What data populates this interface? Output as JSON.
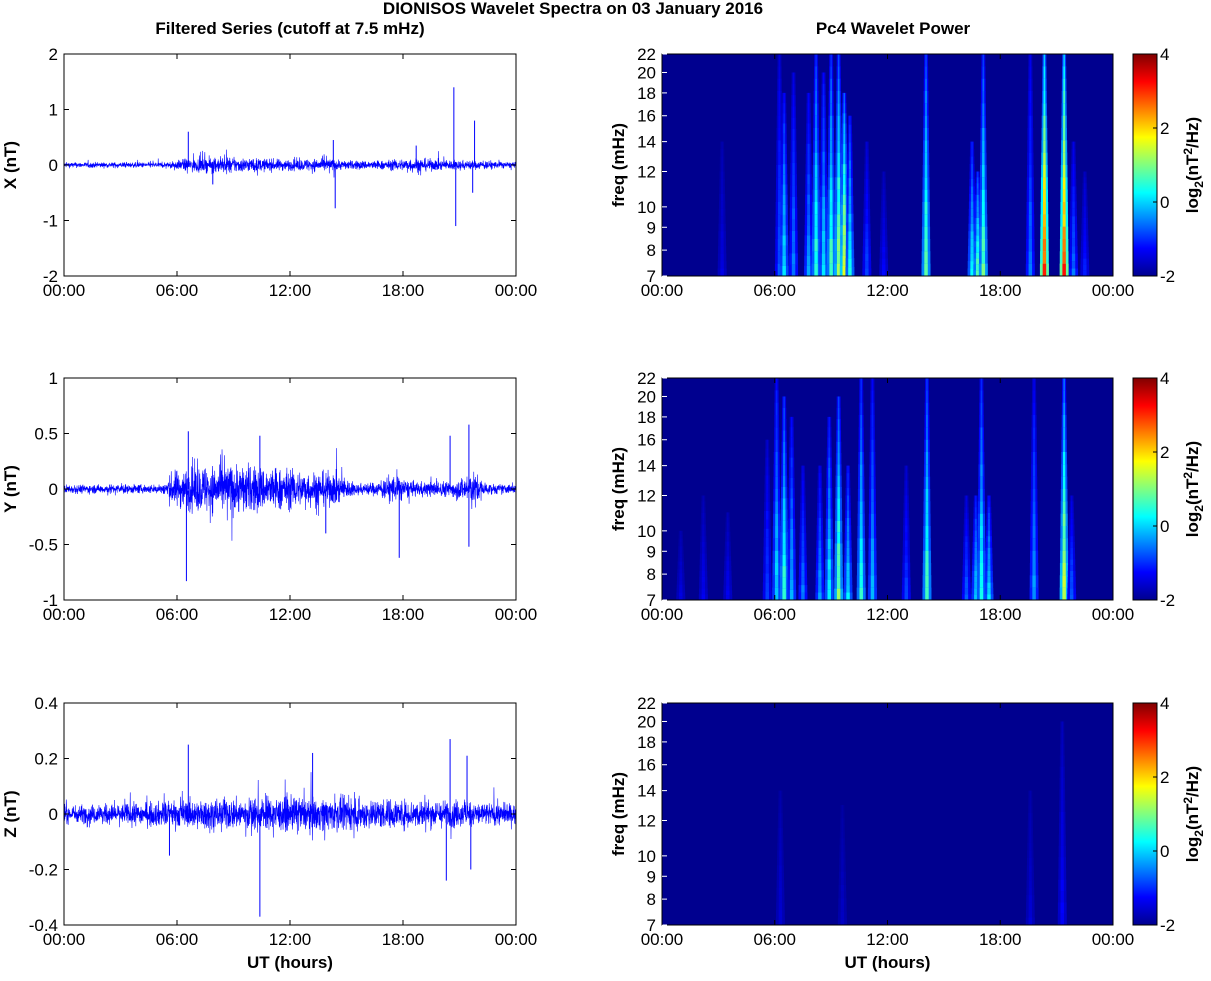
{
  "figure": {
    "title": "DIONISOS Wavelet Spectra on 03 January 2016",
    "left_column_title": "Filtered Series (cutoff at 7.5 mHz)",
    "right_column_title": "Pc4 Wavelet Power"
  },
  "colors": {
    "trace": "#0000ff",
    "spectrogram_background": "#00008f",
    "axes": "#000000",
    "colormap": [
      "#00008f",
      "#0000ff",
      "#0080ff",
      "#00ffff",
      "#80ff80",
      "#ffff00",
      "#ff8000",
      "#ff0000",
      "#800000"
    ]
  },
  "chart_data": [
    {
      "type": "line",
      "series": [
        {
          "name": "X",
          "description": "filtered magnetometer X component, dense noisy trace"
        }
      ],
      "x_ticklabels": [
        "00:00",
        "06:00",
        "12:00",
        "18:00",
        "00:00"
      ],
      "xlim_hours": [
        0,
        24
      ],
      "ylabel": "X (nT)",
      "ylim": [
        -2,
        2
      ],
      "y_ticks": [
        -2,
        -1,
        0,
        1,
        2
      ],
      "y_ticklabels": [
        "-2",
        "-1",
        "0",
        "1",
        "2"
      ],
      "envelope": [
        {
          "t": 0,
          "amp": 0.06
        },
        {
          "t": 5.5,
          "amp": 0.06
        },
        {
          "t": 6.5,
          "amp": 0.14
        },
        {
          "t": 8.5,
          "amp": 0.18
        },
        {
          "t": 12,
          "amp": 0.12
        },
        {
          "t": 14,
          "amp": 0.15
        },
        {
          "t": 15,
          "amp": 0.1
        },
        {
          "t": 17,
          "amp": 0.1
        },
        {
          "t": 18.5,
          "amp": 0.16
        },
        {
          "t": 20,
          "amp": 0.12
        },
        {
          "t": 22,
          "amp": 0.1
        },
        {
          "t": 24,
          "amp": 0.06
        }
      ],
      "spikes": [
        {
          "t": 6.6,
          "v": 0.6
        },
        {
          "t": 7.9,
          "v": -0.35
        },
        {
          "t": 14.4,
          "v": -0.78
        },
        {
          "t": 14.3,
          "v": 0.45
        },
        {
          "t": 18.7,
          "v": 0.35
        },
        {
          "t": 20.7,
          "v": 1.4
        },
        {
          "t": 20.8,
          "v": -1.1
        },
        {
          "t": 21.8,
          "v": 0.8
        },
        {
          "t": 21.7,
          "v": -0.5
        }
      ]
    },
    {
      "type": "heatmap",
      "x_ticklabels": [
        "00:00",
        "06:00",
        "12:00",
        "18:00",
        "00:00"
      ],
      "xlim_hours": [
        0,
        24
      ],
      "ylabel": "freq (mHz)",
      "y_ticks": [
        7,
        8,
        9,
        10,
        12,
        14,
        16,
        18,
        20,
        22
      ],
      "y_ticklabels": [
        "7",
        "8",
        "9",
        "10",
        "12",
        "14",
        "16",
        "18",
        "20",
        "22"
      ],
      "ylim": [
        7,
        22
      ],
      "y_scale": "log",
      "colorbar": {
        "label": "log2(nT²/Hz)",
        "label_base": "log",
        "label_sub": "2",
        "label_open": "(nT",
        "label_sup": "2",
        "label_close": "/Hz)",
        "range": [
          -2,
          4
        ],
        "ticks": [
          -2,
          0,
          2,
          4
        ],
        "ticklabels": [
          "-2",
          "0",
          "2",
          "4"
        ]
      },
      "streaks": [
        {
          "t": 3.2,
          "fmax": 14,
          "level": -1.4
        },
        {
          "t": 6.25,
          "fmax": 22,
          "level": -0.6
        },
        {
          "t": 6.5,
          "fmax": 18,
          "level": 0.3
        },
        {
          "t": 7.0,
          "fmax": 20,
          "level": -0.4
        },
        {
          "t": 7.8,
          "fmax": 18,
          "level": -0.2
        },
        {
          "t": 8.2,
          "fmax": 22,
          "level": 0.8
        },
        {
          "t": 8.6,
          "fmax": 20,
          "level": 0.2
        },
        {
          "t": 9.0,
          "fmax": 22,
          "level": 0.9
        },
        {
          "t": 9.4,
          "fmax": 22,
          "level": 1.4
        },
        {
          "t": 9.7,
          "fmax": 18,
          "level": 1.8
        },
        {
          "t": 10.0,
          "fmax": 16,
          "level": 0.5
        },
        {
          "t": 10.9,
          "fmax": 14,
          "level": -0.8
        },
        {
          "t": 11.8,
          "fmax": 12,
          "level": -1.2
        },
        {
          "t": 14.05,
          "fmax": 22,
          "level": 1.2
        },
        {
          "t": 16.5,
          "fmax": 14,
          "level": 0.4
        },
        {
          "t": 16.8,
          "fmax": 12,
          "level": 0.9
        },
        {
          "t": 17.1,
          "fmax": 22,
          "level": 1.0
        },
        {
          "t": 19.6,
          "fmax": 22,
          "level": -0.4
        },
        {
          "t": 20.35,
          "fmax": 22,
          "level": 3.2
        },
        {
          "t": 21.4,
          "fmax": 22,
          "level": 3.4
        },
        {
          "t": 21.9,
          "fmax": 14,
          "level": -0.5
        },
        {
          "t": 22.5,
          "fmax": 12,
          "level": -1.0
        }
      ]
    },
    {
      "type": "line",
      "series": [
        {
          "name": "Y",
          "description": "filtered magnetometer Y component, dense noisy trace"
        }
      ],
      "x_ticklabels": [
        "00:00",
        "06:00",
        "12:00",
        "18:00",
        "00:00"
      ],
      "xlim_hours": [
        0,
        24
      ],
      "ylabel": "Y (nT)",
      "ylim": [
        -1,
        1
      ],
      "y_ticks": [
        -1,
        -0.5,
        0,
        0.5,
        1
      ],
      "y_ticklabels": [
        "-1",
        "-0.5",
        "0",
        "0.5",
        "1"
      ],
      "envelope": [
        {
          "t": 0,
          "amp": 0.05
        },
        {
          "t": 5.2,
          "amp": 0.05
        },
        {
          "t": 5.8,
          "amp": 0.2
        },
        {
          "t": 7.2,
          "amp": 0.26
        },
        {
          "t": 9.5,
          "amp": 0.28
        },
        {
          "t": 11,
          "amp": 0.24
        },
        {
          "t": 13,
          "amp": 0.2
        },
        {
          "t": 14.5,
          "amp": 0.18
        },
        {
          "t": 15.5,
          "amp": 0.06
        },
        {
          "t": 16.7,
          "amp": 0.08
        },
        {
          "t": 17.5,
          "amp": 0.16
        },
        {
          "t": 18.5,
          "amp": 0.08
        },
        {
          "t": 20.5,
          "amp": 0.09
        },
        {
          "t": 21.8,
          "amp": 0.18
        },
        {
          "t": 22.5,
          "amp": 0.06
        },
        {
          "t": 24,
          "amp": 0.05
        }
      ],
      "spikes": [
        {
          "t": 6.5,
          "v": -0.83
        },
        {
          "t": 6.6,
          "v": 0.52
        },
        {
          "t": 10.4,
          "v": 0.48
        },
        {
          "t": 17.8,
          "v": -0.62
        },
        {
          "t": 20.5,
          "v": 0.48
        },
        {
          "t": 21.5,
          "v": 0.58
        },
        {
          "t": 21.5,
          "v": -0.52
        },
        {
          "t": 13.9,
          "v": -0.4
        }
      ]
    },
    {
      "type": "heatmap",
      "x_ticklabels": [
        "00:00",
        "06:00",
        "12:00",
        "18:00",
        "00:00"
      ],
      "xlim_hours": [
        0,
        24
      ],
      "ylabel": "freq (mHz)",
      "y_ticks": [
        7,
        8,
        9,
        10,
        12,
        14,
        16,
        18,
        20,
        22
      ],
      "y_ticklabels": [
        "7",
        "8",
        "9",
        "10",
        "12",
        "14",
        "16",
        "18",
        "20",
        "22"
      ],
      "ylim": [
        7,
        22
      ],
      "y_scale": "log",
      "colorbar": {
        "label": "log2(nT²/Hz)",
        "label_base": "log",
        "label_sub": "2",
        "label_open": "(nT",
        "label_sup": "2",
        "label_close": "/Hz)",
        "range": [
          -2,
          4
        ],
        "ticks": [
          -2,
          0,
          2,
          4
        ],
        "ticklabels": [
          "-2",
          "0",
          "2",
          "4"
        ]
      },
      "streaks": [
        {
          "t": 1.0,
          "fmax": 10,
          "level": -1.4
        },
        {
          "t": 2.2,
          "fmax": 12,
          "level": -1.3
        },
        {
          "t": 3.5,
          "fmax": 11,
          "level": -1.3
        },
        {
          "t": 5.6,
          "fmax": 16,
          "level": -0.8
        },
        {
          "t": 6.1,
          "fmax": 22,
          "level": 0.2
        },
        {
          "t": 6.5,
          "fmax": 20,
          "level": 0.8
        },
        {
          "t": 6.9,
          "fmax": 18,
          "level": 0.0
        },
        {
          "t": 7.5,
          "fmax": 14,
          "level": -0.4
        },
        {
          "t": 8.4,
          "fmax": 14,
          "level": -0.2
        },
        {
          "t": 8.9,
          "fmax": 18,
          "level": 0.4
        },
        {
          "t": 9.4,
          "fmax": 20,
          "level": 1.2
        },
        {
          "t": 9.9,
          "fmax": 14,
          "level": 0.3
        },
        {
          "t": 10.6,
          "fmax": 22,
          "level": 0.6
        },
        {
          "t": 11.2,
          "fmax": 22,
          "level": 0.0
        },
        {
          "t": 13.0,
          "fmax": 14,
          "level": -0.8
        },
        {
          "t": 14.1,
          "fmax": 22,
          "level": 0.9
        },
        {
          "t": 16.2,
          "fmax": 12,
          "level": -0.6
        },
        {
          "t": 16.7,
          "fmax": 12,
          "level": 0.2
        },
        {
          "t": 17.0,
          "fmax": 22,
          "level": 0.6
        },
        {
          "t": 17.4,
          "fmax": 12,
          "level": 0.3
        },
        {
          "t": 19.8,
          "fmax": 22,
          "level": -0.2
        },
        {
          "t": 21.4,
          "fmax": 22,
          "level": 1.8
        },
        {
          "t": 21.8,
          "fmax": 12,
          "level": -0.6
        }
      ]
    },
    {
      "type": "line",
      "series": [
        {
          "name": "Z",
          "description": "filtered magnetometer Z component, dense noisy trace"
        }
      ],
      "x_ticklabels": [
        "00:00",
        "06:00",
        "12:00",
        "18:00",
        "00:00"
      ],
      "xlim_hours": [
        0,
        24
      ],
      "xlabel": "UT (hours)",
      "ylabel": "Z (nT)",
      "ylim": [
        -0.4,
        0.4
      ],
      "y_ticks": [
        -0.4,
        -0.2,
        0,
        0.2,
        0.4
      ],
      "y_ticklabels": [
        "-0.4",
        "-0.2",
        "0",
        "0.2",
        "0.4"
      ],
      "envelope": [
        {
          "t": 0,
          "amp": 0.04
        },
        {
          "t": 3,
          "amp": 0.045
        },
        {
          "t": 6,
          "amp": 0.06
        },
        {
          "t": 9,
          "amp": 0.07
        },
        {
          "t": 12,
          "amp": 0.075
        },
        {
          "t": 15,
          "amp": 0.07
        },
        {
          "t": 18,
          "amp": 0.065
        },
        {
          "t": 21,
          "amp": 0.06
        },
        {
          "t": 24,
          "amp": 0.045
        }
      ],
      "spikes": [
        {
          "t": 6.6,
          "v": 0.25
        },
        {
          "t": 10.4,
          "v": -0.37
        },
        {
          "t": 13.2,
          "v": 0.22
        },
        {
          "t": 20.5,
          "v": 0.27
        },
        {
          "t": 20.3,
          "v": -0.24
        },
        {
          "t": 21.4,
          "v": 0.21
        },
        {
          "t": 21.6,
          "v": -0.2
        },
        {
          "t": 5.6,
          "v": -0.15
        }
      ]
    },
    {
      "type": "heatmap",
      "x_ticklabels": [
        "00:00",
        "06:00",
        "12:00",
        "18:00",
        "00:00"
      ],
      "xlim_hours": [
        0,
        24
      ],
      "xlabel": "UT (hours)",
      "ylabel": "freq (mHz)",
      "y_ticks": [
        7,
        8,
        9,
        10,
        12,
        14,
        16,
        18,
        20,
        22
      ],
      "y_ticklabels": [
        "7",
        "8",
        "9",
        "10",
        "12",
        "14",
        "16",
        "18",
        "20",
        "22"
      ],
      "ylim": [
        7,
        22
      ],
      "y_scale": "log",
      "colorbar": {
        "label": "log2(nT²/Hz)",
        "label_base": "log",
        "label_sub": "2",
        "label_open": "(nT",
        "label_sup": "2",
        "label_close": "/Hz)",
        "range": [
          -2,
          4
        ],
        "ticks": [
          -2,
          0,
          2,
          4
        ],
        "ticklabels": [
          "-2",
          "0",
          "2",
          "4"
        ]
      },
      "streaks": [
        {
          "t": 6.3,
          "fmax": 14,
          "level": -1.5
        },
        {
          "t": 9.6,
          "fmax": 13,
          "level": -1.6
        },
        {
          "t": 19.6,
          "fmax": 14,
          "level": -1.5
        },
        {
          "t": 21.3,
          "fmax": 20,
          "level": -1.2
        }
      ]
    }
  ]
}
